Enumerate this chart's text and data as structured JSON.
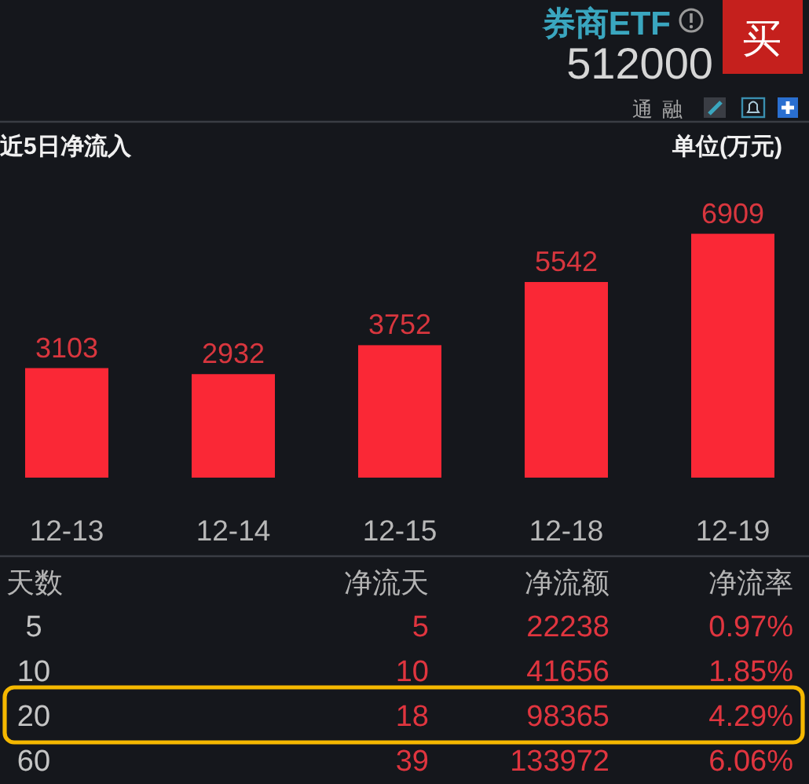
{
  "chart_data": [
    {
      "type": "other",
      "annotations": [
        "券商ETF",
        "512000",
        "买",
        "通",
        "融"
      ]
    },
    {
      "type": "bar",
      "title": "近5日净流入",
      "annotations": [
        "单位(万元)"
      ],
      "categories": [
        "12-13",
        "12-14",
        "12-15",
        "12-18",
        "12-19"
      ],
      "values": [
        3103,
        2932,
        3752,
        5542,
        6909
      ],
      "color": "#fa2836",
      "data_labels": true
    },
    {
      "type": "other",
      "ylabel": "天数",
      "y_categories": [
        "5",
        "10",
        "20",
        "60"
      ],
      "categories": [
        "净流天",
        "净流额",
        "净流率"
      ],
      "cell_labels": [
        [
          "5",
          "22238",
          "0.97%"
        ],
        [
          "10",
          "41656",
          "1.85%"
        ],
        [
          "18",
          "98365",
          "4.29%"
        ],
        [
          "39",
          "133972",
          "6.06%"
        ]
      ],
      "color": "#e0353f"
    }
  ]
}
